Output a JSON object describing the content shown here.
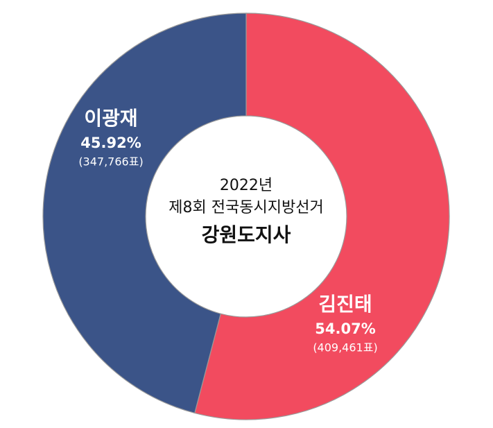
{
  "chart_data": {
    "type": "donut",
    "center_lines": [
      "2022년",
      "제8회 전국동시지방선거",
      "강원도지사"
    ],
    "categories": [
      "김진태",
      "이광재"
    ],
    "values": [
      54.07,
      45.92
    ],
    "value_labels": [
      "54.07%",
      "45.92%"
    ],
    "vote_labels": [
      "(409,461표)",
      "(347,766표)"
    ],
    "colors": [
      "#f24b5f",
      "#3b5488"
    ]
  }
}
